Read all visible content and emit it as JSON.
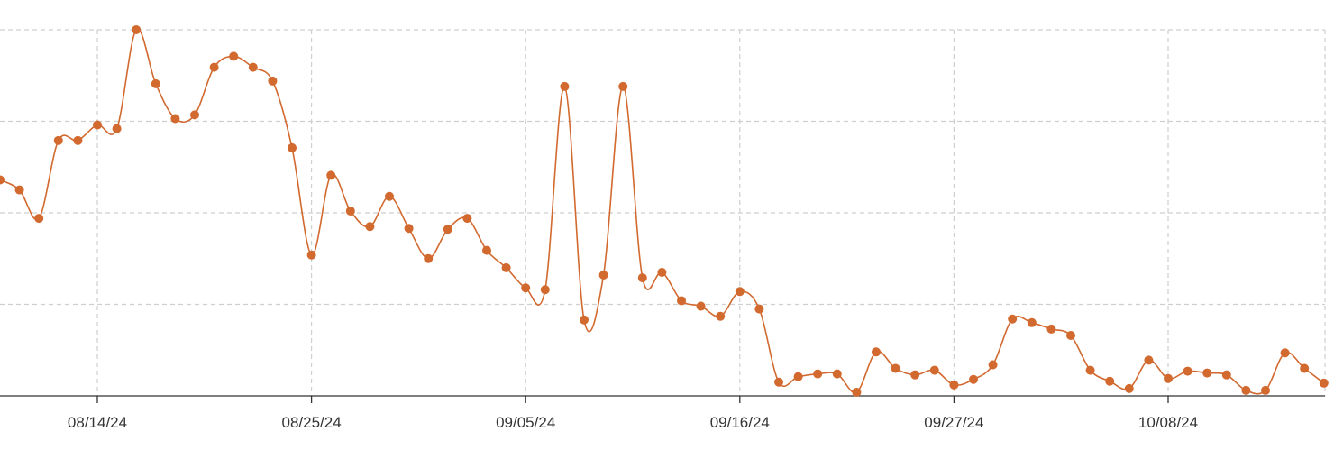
{
  "chart_data": {
    "type": "line",
    "title": "",
    "xlabel": "",
    "ylabel": "",
    "x_tick_labels": [
      "08/14/24",
      "08/25/24",
      "09/05/24",
      "09/16/24",
      "09/27/24",
      "10/08/24"
    ],
    "x_range": [
      "08/09/24",
      "10/16/24"
    ],
    "ylim": [
      0,
      4
    ],
    "y_gridlines": [
      1,
      2,
      3,
      4
    ],
    "y_tick_labels_visible": false,
    "grid": true,
    "legend": "none",
    "series": [
      {
        "color": "#d2692f",
        "x": [
          "08/09/24",
          "08/10/24",
          "08/11/24",
          "08/12/24",
          "08/13/24",
          "08/14/24",
          "08/15/24",
          "08/16/24",
          "08/17/24",
          "08/18/24",
          "08/19/24",
          "08/20/24",
          "08/21/24",
          "08/22/24",
          "08/23/24",
          "08/24/24",
          "08/25/24",
          "08/26/24",
          "08/27/24",
          "08/28/24",
          "08/29/24",
          "08/30/24",
          "08/31/24",
          "09/01/24",
          "09/02/24",
          "09/03/24",
          "09/04/24",
          "09/05/24",
          "09/06/24",
          "09/07/24",
          "09/08/24",
          "09/09/24",
          "09/10/24",
          "09/11/24",
          "09/12/24",
          "09/13/24",
          "09/14/24",
          "09/15/24",
          "09/16/24",
          "09/17/24",
          "09/18/24",
          "09/19/24",
          "09/20/24",
          "09/21/24",
          "09/22/24",
          "09/23/24",
          "09/24/24",
          "09/25/24",
          "09/26/24",
          "09/27/24",
          "09/28/24",
          "09/29/24",
          "09/30/24",
          "10/01/24",
          "10/02/24",
          "10/03/24",
          "10/04/24",
          "10/05/24",
          "10/06/24",
          "10/07/24",
          "10/08/24",
          "10/09/24",
          "10/10/24",
          "10/11/24",
          "10/12/24",
          "10/13/24",
          "10/14/24",
          "10/15/24",
          "10/16/24"
        ],
        "y": [
          2.36,
          2.25,
          1.94,
          2.79,
          2.79,
          2.96,
          2.92,
          4.0,
          3.41,
          3.03,
          3.07,
          3.59,
          3.71,
          3.59,
          3.44,
          2.71,
          1.54,
          2.41,
          2.02,
          1.85,
          2.18,
          1.83,
          1.5,
          1.82,
          1.94,
          1.59,
          1.4,
          1.18,
          1.16,
          3.38,
          0.83,
          1.32,
          3.38,
          1.29,
          1.35,
          1.04,
          0.98,
          0.87,
          1.14,
          0.95,
          0.15,
          0.21,
          0.24,
          0.24,
          0.04,
          0.48,
          0.3,
          0.23,
          0.28,
          0.12,
          0.18,
          0.34,
          0.84,
          0.8,
          0.73,
          0.66,
          0.28,
          0.16,
          0.08,
          0.39,
          0.19,
          0.27,
          0.25,
          0.23,
          0.06,
          0.06,
          0.47,
          0.3,
          0.14
        ]
      }
    ]
  }
}
